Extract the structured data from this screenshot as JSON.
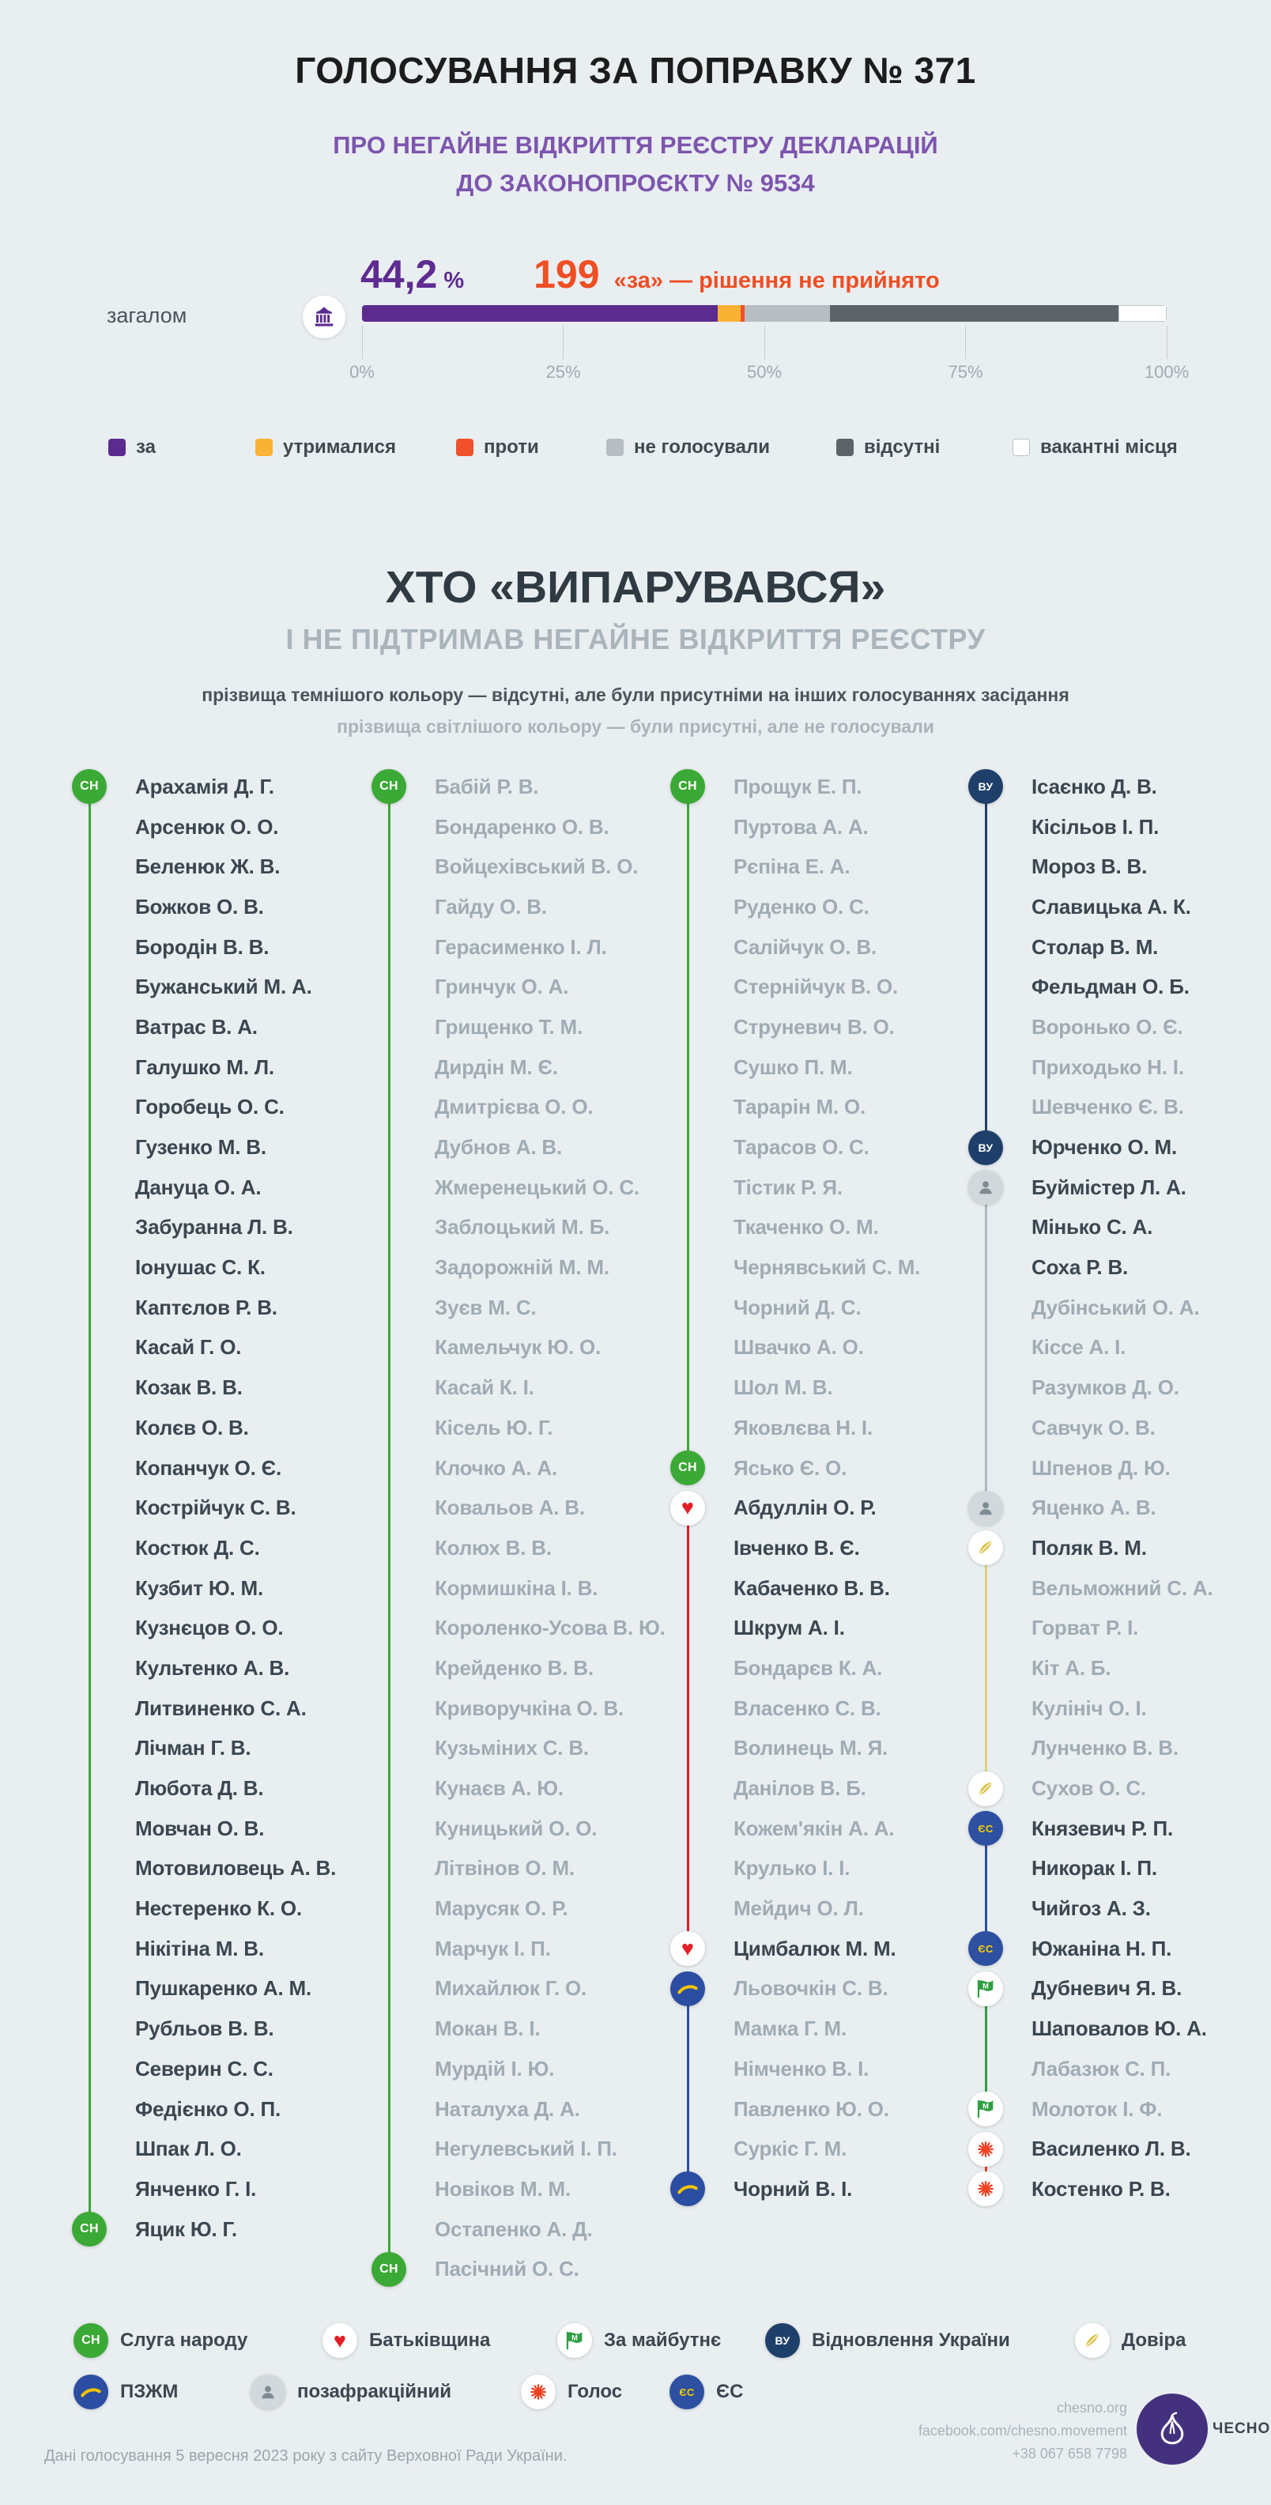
{
  "header": {
    "title": "ГОЛОСУВАННЯ ЗА ПОПРАВКУ № 371",
    "subtitle_line1": "ПРО НЕГАЙНЕ ВІДКРИТТЯ РЕЄСТРУ ДЕКЛАРАЦІЙ",
    "subtitle_line2": "ДО ЗАКОНОПРОЄКТУ № 9534"
  },
  "chart_data": {
    "type": "bar",
    "subtype": "stacked-horizontal",
    "title": "ГОЛОСУВАННЯ ЗА ПОПРАВКУ № 371",
    "row_label": "загалом",
    "percent_value": "44,2",
    "percent_unit": "%",
    "votes_for": "199",
    "result_text": "«за» — рішення не прийнято",
    "xlim": [
      0,
      100
    ],
    "x_ticks": [
      "0%",
      "25%",
      "50%",
      "75%",
      "100%"
    ],
    "segments": [
      {
        "label": "за",
        "pct": 44.2,
        "color": "#5b2b8f"
      },
      {
        "label": "утрималися",
        "pct": 2.9,
        "color": "#f9b233"
      },
      {
        "label": "проти",
        "pct": 0.4,
        "color": "#f0512a"
      },
      {
        "label": "не голосували",
        "pct": 10.7,
        "color": "#b6bec4"
      },
      {
        "label": "відсутні",
        "pct": 35.8,
        "color": "#5c646a"
      },
      {
        "label": "вакантні місця",
        "pct": 6.0,
        "color": "#ffffff"
      }
    ]
  },
  "section": {
    "title": "ХТО «ВИПАРУВАВСЯ»",
    "subtitle": "І НЕ ПІДТРИМАВ НЕГАЙНЕ ВІДКРИТТЯ РЕЄСТРУ",
    "note_dark": "прізвища темнішого кольору — відсутні, але були присутніми на інших голосуваннях засідання",
    "note_light": "прізвища світлішого кольору — були присутні, але не голосували"
  },
  "parties": {
    "sn": {
      "name": "Слуга народу",
      "abbr": "СН",
      "kind": "text",
      "circle": "#3ba935",
      "fg": "#ffffff",
      "fs": 16,
      "line": "#3ba935"
    },
    "batkiv": {
      "name": "Батьківщина",
      "kind": "heart",
      "circle": "#ffffff",
      "fg": "#e31e24",
      "line": "#e31e24"
    },
    "zm": {
      "name": "За майбутнє",
      "kind": "flag",
      "circle": "#ffffff",
      "fg": "#2f9e41",
      "line": "#2f9e41"
    },
    "vu": {
      "name": "Відновлення України",
      "abbr": "ВУ",
      "kind": "text",
      "circle": "#1f3f6b",
      "fg": "#ffffff",
      "fs": 14,
      "line": "#1f3f6b"
    },
    "dovira": {
      "name": "Довіра",
      "kind": "feather",
      "circle": "#ffffff",
      "fg": "#d9c243",
      "line": "#e0d27a"
    },
    "pzzhm": {
      "name": "ПЗЖМ",
      "kind": "swoosh",
      "circle": "#2b4ea2",
      "fg": "#f5c400",
      "line": "#2b4ea2"
    },
    "nonfr": {
      "name": "позафракційний",
      "kind": "person",
      "circle": "#d2d9dd",
      "fg": "#7e8b93",
      "line": "#aeb8be"
    },
    "golos": {
      "name": "Голос",
      "kind": "burst",
      "circle": "#ffffff",
      "fg": "#ef4123",
      "line": "#ef4123"
    },
    "es": {
      "name": "ЄС",
      "abbr": "ЄС",
      "kind": "text",
      "circle": "#2d50a0",
      "fg": "#f8d102",
      "fs": 13,
      "line": "#2d50a0"
    }
  },
  "party_legend": [
    [
      "sn",
      "batkiv",
      "zm",
      "vu",
      "dovira"
    ],
    [
      "pzzhm",
      "nonfr",
      "golos",
      "es"
    ]
  ],
  "columns": [
    {
      "segments": [
        {
          "from": 0,
          "to": 36,
          "party": "sn"
        }
      ],
      "items": [
        {
          "n": "Арахамія Д. Г.",
          "s": "d",
          "i": "sn"
        },
        {
          "n": "Арсенюк О. О.",
          "s": "d"
        },
        {
          "n": "Беленюк Ж. В.",
          "s": "d"
        },
        {
          "n": "Божков О. В.",
          "s": "d"
        },
        {
          "n": "Бородін В. В.",
          "s": "d"
        },
        {
          "n": "Бужанський М. А.",
          "s": "d"
        },
        {
          "n": "Ватрас В. А.",
          "s": "d"
        },
        {
          "n": "Галушко М. Л.",
          "s": "d"
        },
        {
          "n": "Горобець О. С.",
          "s": "d"
        },
        {
          "n": "Гузенко М. В.",
          "s": "d"
        },
        {
          "n": "Дануца О. А.",
          "s": "d"
        },
        {
          "n": "Забуранна Л. В.",
          "s": "d"
        },
        {
          "n": "Іонушас С. К.",
          "s": "d"
        },
        {
          "n": "Каптєлов Р. В.",
          "s": "d"
        },
        {
          "n": "Касай Г. О.",
          "s": "d"
        },
        {
          "n": "Козак В. В.",
          "s": "d"
        },
        {
          "n": "Колєв О. В.",
          "s": "d"
        },
        {
          "n": "Копанчук О. Є.",
          "s": "d"
        },
        {
          "n": "Кострійчук С. В.",
          "s": "d"
        },
        {
          "n": "Костюк Д. С.",
          "s": "d"
        },
        {
          "n": "Кузбит Ю. М.",
          "s": "d"
        },
        {
          "n": "Кузнєцов О. О.",
          "s": "d"
        },
        {
          "n": "Культенко А. В.",
          "s": "d"
        },
        {
          "n": "Литвиненко С. А.",
          "s": "d"
        },
        {
          "n": "Лічман Г. В.",
          "s": "d"
        },
        {
          "n": "Любота Д. В.",
          "s": "d"
        },
        {
          "n": "Мовчан О. В.",
          "s": "d"
        },
        {
          "n": "Мотовиловець А. В.",
          "s": "d"
        },
        {
          "n": "Нестеренко К. О.",
          "s": "d"
        },
        {
          "n": "Нікітіна М. В.",
          "s": "d"
        },
        {
          "n": "Пушкаренко А. М.",
          "s": "d"
        },
        {
          "n": "Рубльов В. В.",
          "s": "d"
        },
        {
          "n": "Северин С. С.",
          "s": "d"
        },
        {
          "n": "Федієнко О. П.",
          "s": "d"
        },
        {
          "n": "Шпак Л. О.",
          "s": "d"
        },
        {
          "n": "Янченко Г. І.",
          "s": "d"
        },
        {
          "n": "Яцик Ю. Г.",
          "s": "d",
          "i": "sn"
        }
      ]
    },
    {
      "segments": [
        {
          "from": 0,
          "to": 37,
          "party": "sn"
        }
      ],
      "items": [
        {
          "n": "Бабій Р. В.",
          "s": "l",
          "i": "sn"
        },
        {
          "n": "Бондаренко О. В.",
          "s": "l"
        },
        {
          "n": "Войцехівський В. О.",
          "s": "l"
        },
        {
          "n": "Гайду О. В.",
          "s": "l"
        },
        {
          "n": "Герасименко І. Л.",
          "s": "l"
        },
        {
          "n": "Гринчук О. А.",
          "s": "l"
        },
        {
          "n": "Грищенко Т. М.",
          "s": "l"
        },
        {
          "n": "Дирдін М. Є.",
          "s": "l"
        },
        {
          "n": "Дмитрієва О. О.",
          "s": "l"
        },
        {
          "n": "Дубнов А. В.",
          "s": "l"
        },
        {
          "n": "Жмеренецький О. С.",
          "s": "l"
        },
        {
          "n": "Заблоцький М. Б.",
          "s": "l"
        },
        {
          "n": "Задорожній М. М.",
          "s": "l"
        },
        {
          "n": "Зуєв М. С.",
          "s": "l"
        },
        {
          "n": "Камельчук Ю. О.",
          "s": "l"
        },
        {
          "n": "Касай К. І.",
          "s": "l"
        },
        {
          "n": "Кісель Ю. Г.",
          "s": "l"
        },
        {
          "n": "Клочко А. А.",
          "s": "l"
        },
        {
          "n": "Ковальов А. В.",
          "s": "l"
        },
        {
          "n": "Колюх В. В.",
          "s": "l"
        },
        {
          "n": "Кормишкіна І. В.",
          "s": "l"
        },
        {
          "n": "Короленко-Усова В. Ю.",
          "s": "l"
        },
        {
          "n": "Крейденко В. В.",
          "s": "l"
        },
        {
          "n": "Криворучкіна О. В.",
          "s": "l"
        },
        {
          "n": "Кузьміних С. В.",
          "s": "l"
        },
        {
          "n": "Кунаєв А. Ю.",
          "s": "l"
        },
        {
          "n": "Куницький О. О.",
          "s": "l"
        },
        {
          "n": "Літвінов О. М.",
          "s": "l"
        },
        {
          "n": "Марусяк О. Р.",
          "s": "l"
        },
        {
          "n": "Марчук І. П.",
          "s": "l"
        },
        {
          "n": "Михайлюк Г. О.",
          "s": "l"
        },
        {
          "n": "Мокан В. І.",
          "s": "l"
        },
        {
          "n": "Мурдій І. Ю.",
          "s": "l"
        },
        {
          "n": "Наталуха Д. А.",
          "s": "l"
        },
        {
          "n": "Негулевський І. П.",
          "s": "l"
        },
        {
          "n": "Новіков М. М.",
          "s": "l"
        },
        {
          "n": "Остапенко А. Д.",
          "s": "l"
        },
        {
          "n": "Пасічний О. С.",
          "s": "l",
          "i": "sn"
        }
      ]
    },
    {
      "segments": [
        {
          "from": 0,
          "to": 17,
          "party": "sn"
        },
        {
          "from": 18,
          "to": 29,
          "party": "batkiv"
        },
        {
          "from": 30,
          "to": 35,
          "party": "pzzhm"
        }
      ],
      "items": [
        {
          "n": "Прощук Е. П.",
          "s": "l",
          "i": "sn"
        },
        {
          "n": "Пуртова А. А.",
          "s": "l"
        },
        {
          "n": "Рєпіна Е. А.",
          "s": "l"
        },
        {
          "n": "Руденко О. С.",
          "s": "l"
        },
        {
          "n": "Салійчук О. В.",
          "s": "l"
        },
        {
          "n": "Стернійчук В. О.",
          "s": "l"
        },
        {
          "n": "Струневич В. О.",
          "s": "l"
        },
        {
          "n": "Сушко П. М.",
          "s": "l"
        },
        {
          "n": "Тарарін М. О.",
          "s": "l"
        },
        {
          "n": "Тарасов О. С.",
          "s": "l"
        },
        {
          "n": "Тістик Р. Я.",
          "s": "l"
        },
        {
          "n": "Ткаченко О. М.",
          "s": "l"
        },
        {
          "n": "Чернявський С. М.",
          "s": "l"
        },
        {
          "n": "Чорний Д. С.",
          "s": "l"
        },
        {
          "n": "Швачко А. О.",
          "s": "l"
        },
        {
          "n": "Шол М. В.",
          "s": "l"
        },
        {
          "n": "Яковлєва Н. І.",
          "s": "l"
        },
        {
          "n": "Ясько Є. О.",
          "s": "l",
          "i": "sn"
        },
        {
          "n": "Абдуллін О. Р.",
          "s": "d",
          "i": "batkiv"
        },
        {
          "n": "Івченко В. Є.",
          "s": "d"
        },
        {
          "n": "Кабаченко В. В.",
          "s": "d"
        },
        {
          "n": "Шкрум А. І.",
          "s": "d"
        },
        {
          "n": "Бондарєв К. А.",
          "s": "l"
        },
        {
          "n": "Власенко С. В.",
          "s": "l"
        },
        {
          "n": "Волинець М. Я.",
          "s": "l"
        },
        {
          "n": "Данілов В. Б.",
          "s": "l"
        },
        {
          "n": "Кожем'якін А. А.",
          "s": "l"
        },
        {
          "n": "Крулько І. І.",
          "s": "l"
        },
        {
          "n": "Мейдич О. Л.",
          "s": "l"
        },
        {
          "n": "Цимбалюк М. М.",
          "s": "d",
          "i": "batkiv"
        },
        {
          "n": "Льовочкін С. В.",
          "s": "l",
          "i": "pzzhm"
        },
        {
          "n": "Мамка Г. М.",
          "s": "l"
        },
        {
          "n": "Німченко В. І.",
          "s": "l"
        },
        {
          "n": "Павленко Ю. О.",
          "s": "l"
        },
        {
          "n": "Суркіс Г. М.",
          "s": "l"
        },
        {
          "n": "Чорний В. І.",
          "s": "d",
          "i": "pzzhm"
        }
      ]
    },
    {
      "segments": [
        {
          "from": 0,
          "to": 9,
          "party": "vu"
        },
        {
          "from": 10,
          "to": 18,
          "party": "nonfr"
        },
        {
          "from": 19,
          "to": 25,
          "party": "dovira"
        },
        {
          "from": 26,
          "to": 29,
          "party": "es"
        },
        {
          "from": 30,
          "to": 33,
          "party": "zm"
        },
        {
          "from": 34,
          "to": 35,
          "party": "golos"
        }
      ],
      "items": [
        {
          "n": "Ісаєнко Д. В.",
          "s": "d",
          "i": "vu"
        },
        {
          "n": "Кісільов І. П.",
          "s": "d"
        },
        {
          "n": "Мороз В. В.",
          "s": "d"
        },
        {
          "n": "Славицька А. К.",
          "s": "d"
        },
        {
          "n": "Столар В. М.",
          "s": "d"
        },
        {
          "n": "Фельдман О. Б.",
          "s": "d"
        },
        {
          "n": "Воронько О. Є.",
          "s": "l"
        },
        {
          "n": "Приходько Н. І.",
          "s": "l"
        },
        {
          "n": "Шевченко Є. В.",
          "s": "l"
        },
        {
          "n": "Юрченко О. М.",
          "s": "d",
          "i": "vu"
        },
        {
          "n": "Буймістер Л. А.",
          "s": "d",
          "i": "nonfr"
        },
        {
          "n": "Мінько С. А.",
          "s": "d"
        },
        {
          "n": "Соха Р. В.",
          "s": "d"
        },
        {
          "n": "Дубінський О. А.",
          "s": "l"
        },
        {
          "n": "Кіссе А. І.",
          "s": "l"
        },
        {
          "n": "Разумков Д. О.",
          "s": "l"
        },
        {
          "n": "Савчук О. В.",
          "s": "l"
        },
        {
          "n": "Шпенов Д. Ю.",
          "s": "l"
        },
        {
          "n": "Яценко А. В.",
          "s": "l",
          "i": "nonfr"
        },
        {
          "n": "Поляк В. М.",
          "s": "d",
          "i": "dovira"
        },
        {
          "n": "Вельможний С. А.",
          "s": "l"
        },
        {
          "n": "Горват Р. І.",
          "s": "l"
        },
        {
          "n": "Кіт А. Б.",
          "s": "l"
        },
        {
          "n": "Кулініч О. І.",
          "s": "l"
        },
        {
          "n": "Лунченко В. В.",
          "s": "l"
        },
        {
          "n": "Сухов О. С.",
          "s": "l",
          "i": "dovira"
        },
        {
          "n": "Князевич Р. П.",
          "s": "d",
          "i": "es"
        },
        {
          "n": "Никорак І. П.",
          "s": "d"
        },
        {
          "n": "Чийгоз А. З.",
          "s": "d"
        },
        {
          "n": "Южаніна Н. П.",
          "s": "d",
          "i": "es"
        },
        {
          "n": "Дубневич Я. В.",
          "s": "d",
          "i": "zm"
        },
        {
          "n": "Шаповалов Ю. А.",
          "s": "d"
        },
        {
          "n": "Лабазюк С. П.",
          "s": "l"
        },
        {
          "n": "Молоток І. Ф.",
          "s": "l",
          "i": "zm"
        },
        {
          "n": "Василенко Л. В.",
          "s": "d",
          "i": "golos"
        },
        {
          "n": "Костенко Р. В.",
          "s": "d",
          "i": "golos"
        }
      ]
    }
  ],
  "footer": {
    "source": "Дані голосування 5 вересня 2023 року з сайту Верховної Ради України.",
    "website": "chesno.org",
    "facebook": "facebook.com/chesno.movement",
    "phone": "+38 067 658 7798",
    "brand": "ЧЕСНО"
  }
}
